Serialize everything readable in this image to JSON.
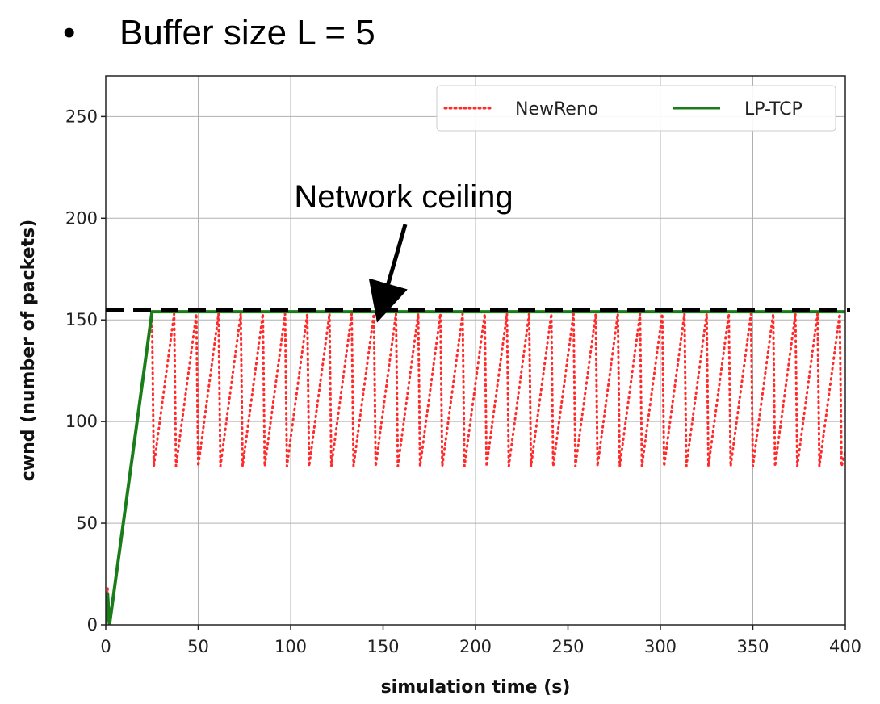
{
  "heading": {
    "bullet": "•",
    "text": "Buffer size L = 5"
  },
  "chart_data": {
    "type": "line",
    "xlabel": "simulation time (s)",
    "ylabel": "cwnd (number of packets)",
    "xlim": [
      0,
      400
    ],
    "ylim": [
      0,
      270
    ],
    "xticks": [
      0,
      50,
      100,
      150,
      200,
      250,
      300,
      350,
      400
    ],
    "yticks": [
      0,
      50,
      100,
      150,
      200,
      250
    ],
    "grid": true,
    "legend": {
      "placement": "top-right",
      "columns": 2
    },
    "series": [
      {
        "name": "NewReno",
        "color": "#ff2a2a",
        "style": "dotted",
        "points": [
          [
            0,
            0
          ],
          [
            1,
            18
          ],
          [
            2,
            0
          ],
          [
            25,
            153
          ],
          [
            26,
            78
          ],
          [
            37,
            153
          ],
          [
            38,
            78
          ],
          [
            49,
            153
          ],
          [
            50,
            78
          ],
          [
            61,
            153
          ],
          [
            62,
            78
          ],
          [
            73,
            153
          ],
          [
            74,
            78
          ],
          [
            85,
            153
          ],
          [
            86,
            78
          ],
          [
            97,
            153
          ],
          [
            98,
            78
          ],
          [
            109,
            153
          ],
          [
            110,
            78
          ],
          [
            121,
            153
          ],
          [
            122,
            78
          ],
          [
            133,
            153
          ],
          [
            134,
            78
          ],
          [
            145,
            153
          ],
          [
            146,
            78
          ],
          [
            157,
            153
          ],
          [
            158,
            78
          ],
          [
            169,
            153
          ],
          [
            170,
            78
          ],
          [
            181,
            153
          ],
          [
            182,
            78
          ],
          [
            193,
            153
          ],
          [
            194,
            78
          ],
          [
            205,
            153
          ],
          [
            206,
            78
          ],
          [
            217,
            153
          ],
          [
            218,
            78
          ],
          [
            229,
            153
          ],
          [
            230,
            78
          ],
          [
            241,
            153
          ],
          [
            242,
            78
          ],
          [
            253,
            153
          ],
          [
            254,
            78
          ],
          [
            265,
            153
          ],
          [
            266,
            78
          ],
          [
            277,
            153
          ],
          [
            278,
            78
          ],
          [
            289,
            153
          ],
          [
            290,
            78
          ],
          [
            301,
            153
          ],
          [
            302,
            78
          ],
          [
            313,
            153
          ],
          [
            314,
            78
          ],
          [
            325,
            153
          ],
          [
            326,
            78
          ],
          [
            337,
            153
          ],
          [
            338,
            78
          ],
          [
            349,
            153
          ],
          [
            350,
            78
          ],
          [
            361,
            153
          ],
          [
            362,
            78
          ],
          [
            373,
            153
          ],
          [
            374,
            78
          ],
          [
            385,
            153
          ],
          [
            386,
            78
          ],
          [
            397,
            153
          ],
          [
            398,
            78
          ],
          [
            400,
            85
          ]
        ]
      },
      {
        "name": "LP-TCP",
        "color": "#1a7d1a",
        "style": "solid",
        "points": [
          [
            0,
            0
          ],
          [
            1,
            15
          ],
          [
            2,
            0
          ],
          [
            25,
            154
          ],
          [
            400,
            154
          ]
        ]
      }
    ],
    "reference_line": {
      "y": 155,
      "color": "#000000",
      "style": "dashed"
    },
    "annotation": {
      "text": "Network ceiling",
      "arrow_target": [
        148,
        155
      ]
    }
  }
}
